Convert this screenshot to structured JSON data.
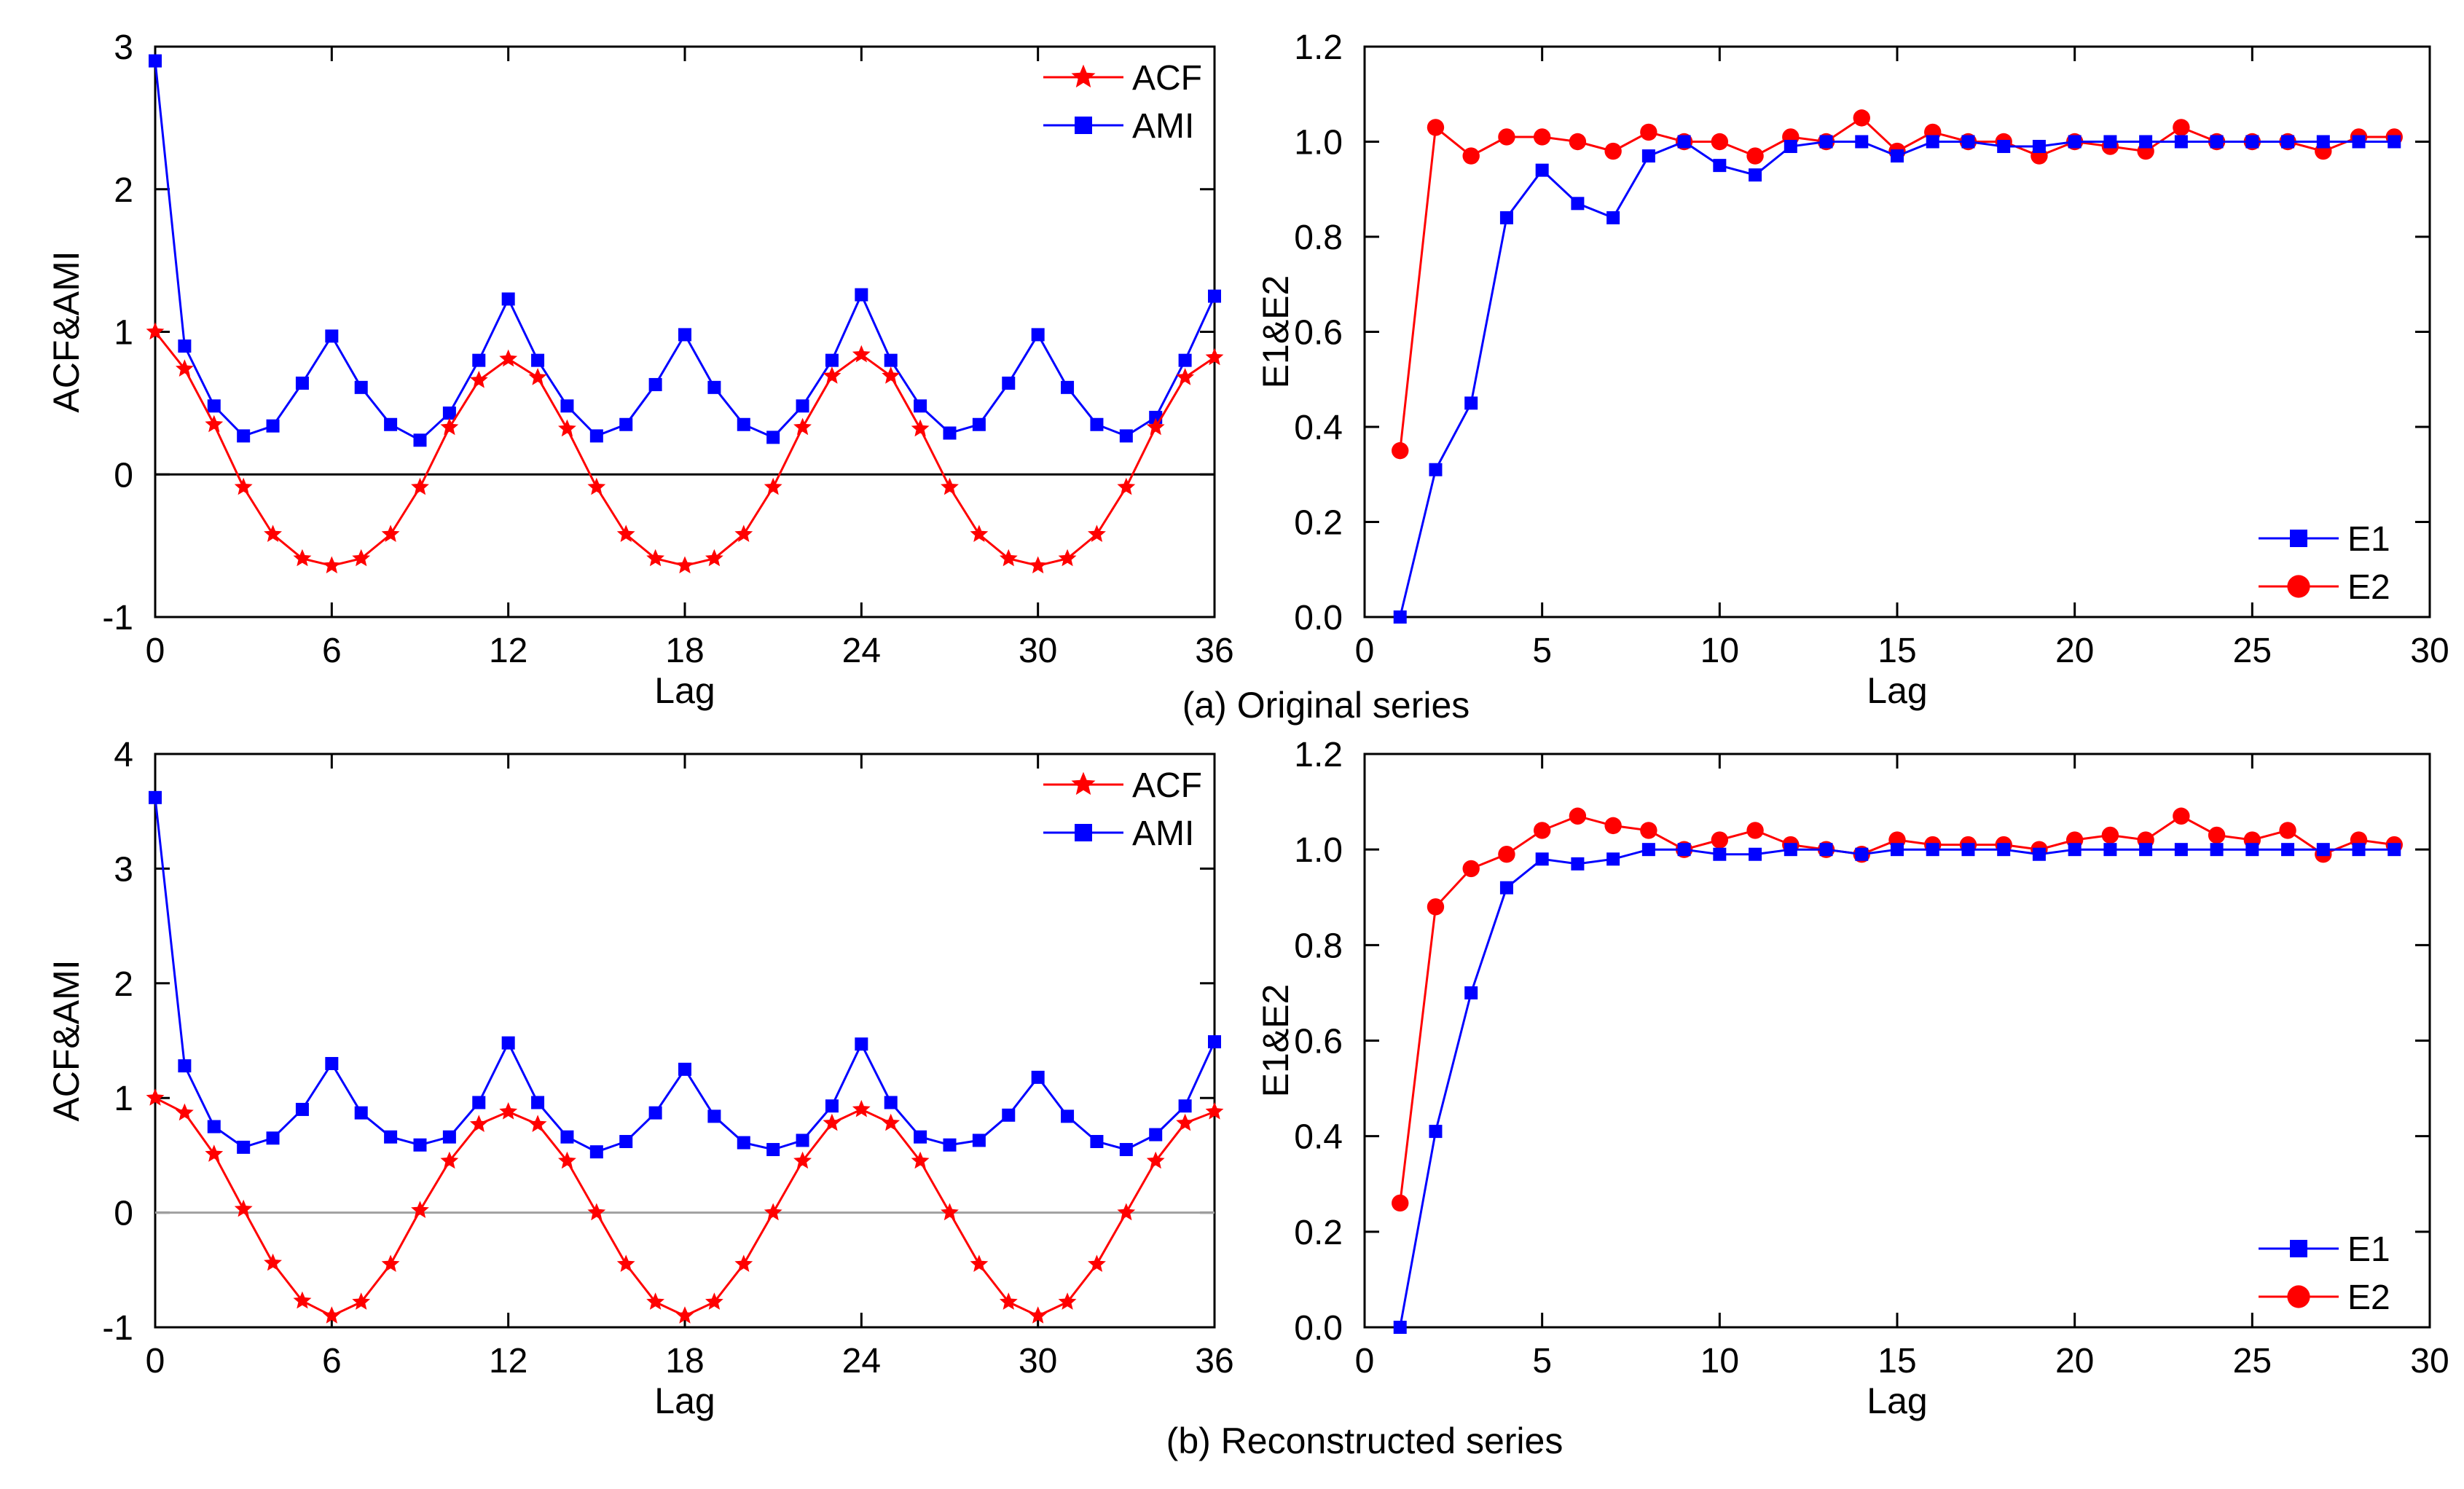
{
  "figure": {
    "caption_a": "(a) Original series",
    "caption_b": "(b) Reconstructed series"
  },
  "colors": {
    "red": "#ff0000",
    "blue": "#0000ff",
    "axis": "#000000",
    "zero_a": "#000000",
    "zero_b": "#a0a0a0"
  },
  "chart_data": [
    {
      "id": "a-left",
      "type": "line",
      "xlabel": "Lag",
      "ylabel": "ACF&AMI",
      "xlim": [
        0,
        36
      ],
      "ylim": [
        -1,
        3
      ],
      "xticks": [
        0,
        6,
        12,
        18,
        24,
        30,
        36
      ],
      "yticks": [
        -1,
        0,
        1,
        2,
        3
      ],
      "zero_line": true,
      "legend": "top-right",
      "x": [
        0,
        1,
        2,
        3,
        4,
        5,
        6,
        7,
        8,
        9,
        10,
        11,
        12,
        13,
        14,
        15,
        16,
        17,
        18,
        19,
        20,
        21,
        22,
        23,
        24,
        25,
        26,
        27,
        28,
        29,
        30,
        31,
        32,
        33,
        34,
        35,
        36
      ],
      "series": [
        {
          "name": "ACF",
          "marker": "star",
          "color": "#ff0000",
          "values": [
            1.0,
            0.74,
            0.35,
            -0.09,
            -0.42,
            -0.59,
            -0.64,
            -0.59,
            -0.42,
            -0.09,
            0.33,
            0.66,
            0.81,
            0.68,
            0.32,
            -0.09,
            -0.42,
            -0.59,
            -0.64,
            -0.59,
            -0.42,
            -0.09,
            0.33,
            0.69,
            0.84,
            0.69,
            0.32,
            -0.09,
            -0.42,
            -0.59,
            -0.64,
            -0.59,
            -0.42,
            -0.09,
            0.33,
            0.68,
            0.82
          ]
        },
        {
          "name": "AMI",
          "marker": "square",
          "color": "#0000ff",
          "values": [
            2.9,
            0.9,
            0.48,
            0.27,
            0.34,
            0.64,
            0.97,
            0.61,
            0.35,
            0.24,
            0.43,
            0.8,
            1.23,
            0.8,
            0.48,
            0.27,
            0.35,
            0.63,
            0.98,
            0.61,
            0.35,
            0.26,
            0.48,
            0.8,
            1.26,
            0.8,
            0.48,
            0.29,
            0.35,
            0.64,
            0.98,
            0.61,
            0.35,
            0.27,
            0.4,
            0.8,
            1.25
          ]
        }
      ]
    },
    {
      "id": "a-right",
      "type": "line",
      "xlabel": "Lag",
      "ylabel": "E1&E2",
      "xlim": [
        0,
        30
      ],
      "ylim": [
        0,
        1.2
      ],
      "xticks": [
        0,
        5,
        10,
        15,
        20,
        25,
        30
      ],
      "yticks": [
        0.0,
        0.2,
        0.4,
        0.6,
        0.8,
        1.0,
        1.2
      ],
      "ytick_labels": [
        "0.0",
        "0.2",
        "0.4",
        "0.6",
        "0.8",
        "1.0",
        "1.2"
      ],
      "zero_line": false,
      "legend": "bottom-right",
      "x": [
        1,
        2,
        3,
        4,
        5,
        6,
        7,
        8,
        9,
        10,
        11,
        12,
        13,
        14,
        15,
        16,
        17,
        18,
        19,
        20,
        21,
        22,
        23,
        24,
        25,
        26,
        27,
        28,
        29
      ],
      "series": [
        {
          "name": "E1",
          "marker": "square",
          "color": "#0000ff",
          "values": [
            0.0,
            0.31,
            0.45,
            0.84,
            0.94,
            0.87,
            0.84,
            0.97,
            1.0,
            0.95,
            0.93,
            0.99,
            1.0,
            1.0,
            0.97,
            1.0,
            1.0,
            0.99,
            0.99,
            1.0,
            1.0,
            1.0,
            1.0,
            1.0,
            1.0,
            1.0,
            1.0,
            1.0,
            1.0
          ]
        },
        {
          "name": "E2",
          "marker": "circle",
          "color": "#ff0000",
          "values": [
            0.35,
            1.03,
            0.97,
            1.01,
            1.01,
            1.0,
            0.98,
            1.02,
            1.0,
            1.0,
            0.97,
            1.01,
            1.0,
            1.05,
            0.98,
            1.02,
            1.0,
            1.0,
            0.97,
            1.0,
            0.99,
            0.98,
            1.03,
            1.0,
            1.0,
            1.0,
            0.98,
            1.01,
            1.01
          ]
        }
      ]
    },
    {
      "id": "b-left",
      "type": "line",
      "xlabel": "Lag",
      "ylabel": "ACF&AMI",
      "xlim": [
        0,
        36
      ],
      "ylim": [
        -1,
        4
      ],
      "xticks": [
        0,
        6,
        12,
        18,
        24,
        30,
        36
      ],
      "yticks": [
        -1,
        0,
        1,
        2,
        3,
        4
      ],
      "zero_line": true,
      "legend": "top-right",
      "x": [
        0,
        1,
        2,
        3,
        4,
        5,
        6,
        7,
        8,
        9,
        10,
        11,
        12,
        13,
        14,
        15,
        16,
        17,
        18,
        19,
        20,
        21,
        22,
        23,
        24,
        25,
        26,
        27,
        28,
        29,
        30,
        31,
        32,
        33,
        34,
        35,
        36
      ],
      "series": [
        {
          "name": "ACF",
          "marker": "star",
          "color": "#ff0000",
          "values": [
            1.0,
            0.87,
            0.51,
            0.03,
            -0.44,
            -0.77,
            -0.9,
            -0.78,
            -0.45,
            0.02,
            0.45,
            0.77,
            0.88,
            0.77,
            0.45,
            0.0,
            -0.45,
            -0.78,
            -0.9,
            -0.78,
            -0.45,
            0.0,
            0.45,
            0.78,
            0.9,
            0.78,
            0.45,
            0.0,
            -0.45,
            -0.78,
            -0.9,
            -0.78,
            -0.45,
            0.0,
            0.45,
            0.78,
            0.88
          ]
        },
        {
          "name": "AMI",
          "marker": "square",
          "color": "#0000ff",
          "values": [
            3.62,
            1.28,
            0.75,
            0.57,
            0.65,
            0.9,
            1.3,
            0.87,
            0.66,
            0.59,
            0.66,
            0.96,
            1.48,
            0.96,
            0.66,
            0.53,
            0.62,
            0.87,
            1.25,
            0.84,
            0.61,
            0.55,
            0.63,
            0.93,
            1.47,
            0.96,
            0.66,
            0.59,
            0.63,
            0.85,
            1.18,
            0.84,
            0.62,
            0.55,
            0.68,
            0.93,
            1.49
          ]
        }
      ]
    },
    {
      "id": "b-right",
      "type": "line",
      "xlabel": "Lag",
      "ylabel": "E1&E2",
      "xlim": [
        0,
        30
      ],
      "ylim": [
        0,
        1.2
      ],
      "xticks": [
        0,
        5,
        10,
        15,
        20,
        25,
        30
      ],
      "yticks": [
        0.0,
        0.2,
        0.4,
        0.6,
        0.8,
        1.0,
        1.2
      ],
      "ytick_labels": [
        "0.0",
        "0.2",
        "0.4",
        "0.6",
        "0.8",
        "1.0",
        "1.2"
      ],
      "zero_line": false,
      "legend": "bottom-right",
      "x": [
        1,
        2,
        3,
        4,
        5,
        6,
        7,
        8,
        9,
        10,
        11,
        12,
        13,
        14,
        15,
        16,
        17,
        18,
        19,
        20,
        21,
        22,
        23,
        24,
        25,
        26,
        27,
        28,
        29
      ],
      "series": [
        {
          "name": "E1",
          "marker": "square",
          "color": "#0000ff",
          "values": [
            0.0,
            0.41,
            0.7,
            0.92,
            0.98,
            0.97,
            0.98,
            1.0,
            1.0,
            0.99,
            0.99,
            1.0,
            1.0,
            0.99,
            1.0,
            1.0,
            1.0,
            1.0,
            0.99,
            1.0,
            1.0,
            1.0,
            1.0,
            1.0,
            1.0,
            1.0,
            1.0,
            1.0,
            1.0
          ]
        },
        {
          "name": "E2",
          "marker": "circle",
          "color": "#ff0000",
          "values": [
            0.26,
            0.88,
            0.96,
            0.99,
            1.04,
            1.07,
            1.05,
            1.04,
            1.0,
            1.02,
            1.04,
            1.01,
            1.0,
            0.99,
            1.02,
            1.01,
            1.01,
            1.01,
            1.0,
            1.02,
            1.03,
            1.02,
            1.07,
            1.03,
            1.02,
            1.04,
            0.99,
            1.02,
            1.01
          ]
        }
      ]
    }
  ]
}
